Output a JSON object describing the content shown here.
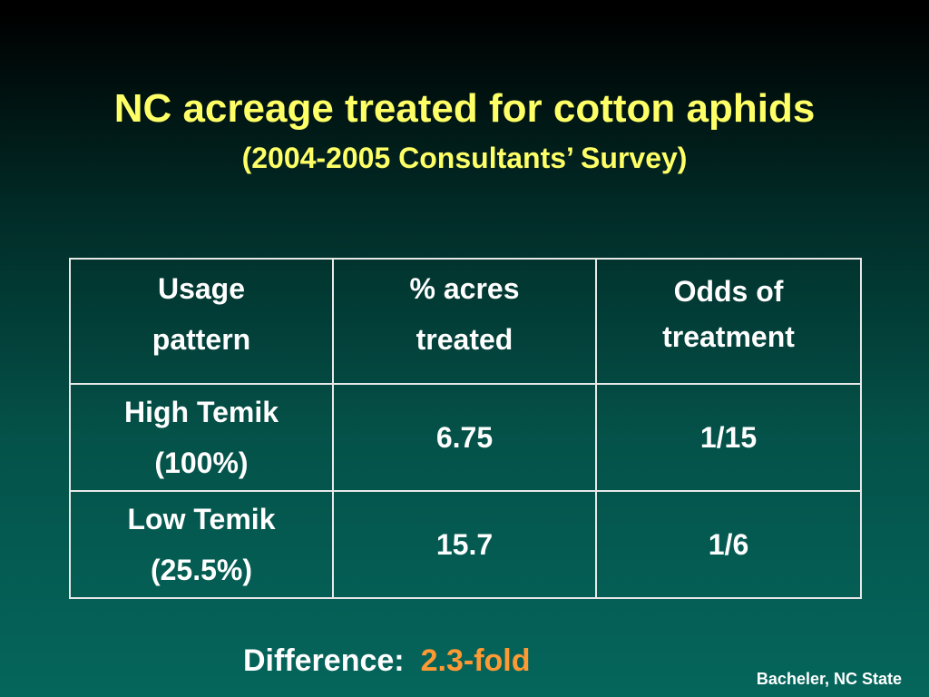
{
  "slide": {
    "title": "NC acreage treated for cotton aphids",
    "subtitle": "(2004-2005 Consultants’ Survey)",
    "background_colors": [
      "#000000",
      "#05665c"
    ],
    "title_color": "#ffff66",
    "accent_color": "#ff9933"
  },
  "table": {
    "headers": [
      {
        "line1": "Usage",
        "line2": "pattern"
      },
      {
        "line1": "% acres",
        "line2": "treated"
      },
      {
        "line1": "Odds of",
        "line2": "treatment"
      }
    ],
    "rows": [
      {
        "label_line1": "High Temik",
        "label_line2": "(100%)",
        "acres": "6.75",
        "odds": "1/15"
      },
      {
        "label_line1": "Low Temik",
        "label_line2": "(25.5%)",
        "acres": "15.7",
        "odds": "1/6"
      }
    ]
  },
  "difference": {
    "label": "Difference:",
    "value": "2.3-fold"
  },
  "credit": "Bacheler, NC State"
}
